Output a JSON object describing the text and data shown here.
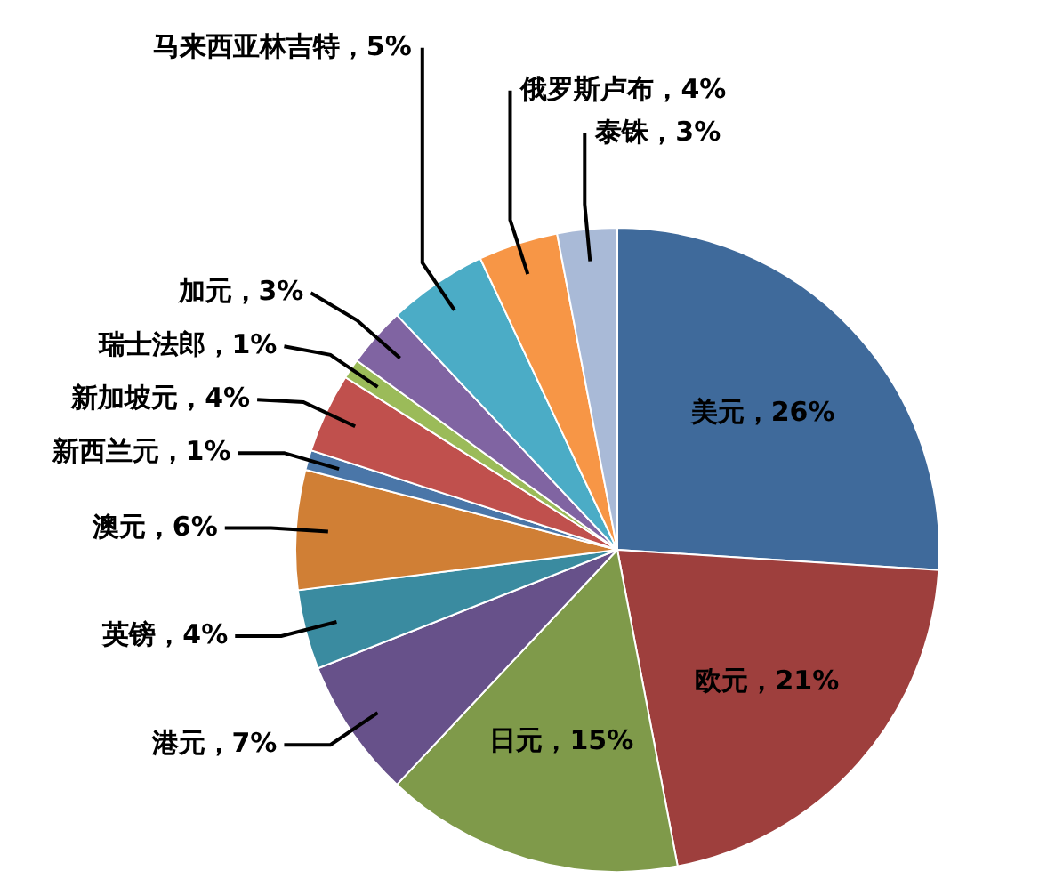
{
  "chart_data": {
    "type": "pie",
    "categories": [
      "美元",
      "欧元",
      "日元",
      "港元",
      "英镑",
      "澳元",
      "新西兰元",
      "新加坡元",
      "瑞士法郎",
      "加元",
      "马来西亚林吉特",
      "俄罗斯卢布",
      "泰铢"
    ],
    "values": [
      26,
      21,
      15,
      7,
      4,
      6,
      1,
      4,
      1,
      3,
      5,
      4,
      3
    ],
    "value_labels": [
      "26%",
      "21%",
      "15%",
      "7%",
      "4%",
      "6%",
      "1%",
      "4%",
      "1%",
      "3%",
      "5%",
      "4%",
      "3%"
    ],
    "colors": [
      "#3f6a9b",
      "#9e3f3d",
      "#7f9a4a",
      "#67518a",
      "#3a8ba0",
      "#d07f35",
      "#4a76a8",
      "#c0504d",
      "#9bbb59",
      "#8064a2",
      "#4bacc6",
      "#f79646",
      "#a9bad7"
    ]
  }
}
